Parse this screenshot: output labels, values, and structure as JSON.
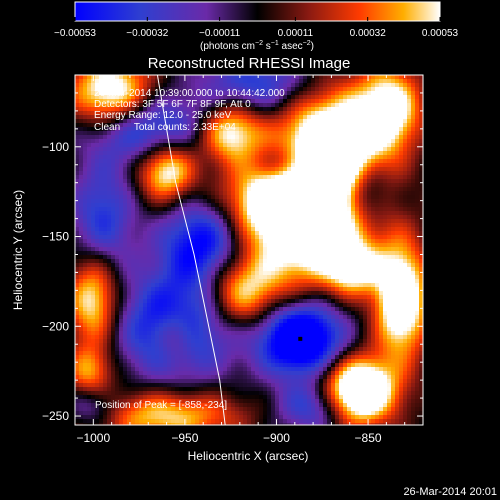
{
  "chart_data": {
    "type": "heatmap",
    "title": "Reconstructed RHESSI Image",
    "xlabel": "Heliocentric X (arcsec)",
    "ylabel": "Heliocentric Y (arcsec)",
    "xlim": [
      -1010,
      -820
    ],
    "ylim": [
      -255,
      -60
    ],
    "x_ticks": [
      -1000,
      -950,
      -900,
      -850
    ],
    "y_ticks": [
      -250,
      -200,
      -150,
      -100
    ],
    "x_tick_labels": [
      "−1000",
      "−950",
      "−900",
      "−850"
    ],
    "y_tick_labels": [
      "−250",
      "−200",
      "−150",
      "−100"
    ],
    "colorbar": {
      "min": -0.00053,
      "max": 0.00053,
      "tick_values": [
        -0.00053,
        -0.00032,
        -0.00011,
        0.00011,
        0.00032,
        0.00053
      ],
      "tick_labels": [
        "−0.00053",
        "−0.00032",
        "−0.00011",
        "0.00011",
        "0.00032",
        "0.00053"
      ],
      "units_label": "(photons cm",
      "units_sup1": "−2",
      "units_mid": " s",
      "units_sup2": "−1",
      "units_end": " asec",
      "units_sup3": "−2",
      "units_close": ")"
    },
    "info_lines": [
      "26-Mar-2014 10:39:00.000 to 10:44:42.000",
      "Detectors: 3F 5F 6F 7F 8F 9F, Att 0",
      "Energy Range: 12.0 - 25.0 keV",
      "Clean     Total counts: 2.33E+04"
    ],
    "peak_label": "Position of Peak = [-858,-234]",
    "peak_position": [
      -858,
      -234
    ],
    "min_marker": [
      -887,
      -207
    ],
    "limb_curve": [
      [
        -965,
        -60
      ],
      [
        -955,
        -120
      ],
      [
        -945,
        -160
      ],
      [
        -937,
        -200
      ],
      [
        -931,
        -230
      ],
      [
        -928,
        -255
      ]
    ],
    "blobs": [
      {
        "x": -870,
        "y": -100,
        "sx": 20,
        "sy": 22,
        "a": 0.0009
      },
      {
        "x": -882,
        "y": -148,
        "sx": 22,
        "sy": 20,
        "a": 0.00075
      },
      {
        "x": -920,
        "y": -180,
        "sx": 16,
        "sy": 15,
        "a": 0.0006
      },
      {
        "x": -903,
        "y": -130,
        "sx": 20,
        "sy": 14,
        "a": 0.00055
      },
      {
        "x": -925,
        "y": -92,
        "sx": 12,
        "sy": 12,
        "a": 0.0006
      },
      {
        "x": -960,
        "y": -113,
        "sx": 11,
        "sy": 12,
        "a": 0.00065
      },
      {
        "x": -990,
        "y": -70,
        "sx": 16,
        "sy": 14,
        "a": 0.0007
      },
      {
        "x": -1000,
        "y": -185,
        "sx": 10,
        "sy": 18,
        "a": 0.0006
      },
      {
        "x": -855,
        "y": -236,
        "sx": 14,
        "sy": 13,
        "a": 0.00095
      },
      {
        "x": -832,
        "y": -185,
        "sx": 10,
        "sy": 22,
        "a": 0.0008
      },
      {
        "x": -960,
        "y": -250,
        "sx": 28,
        "sy": 10,
        "a": 0.0005
      },
      {
        "x": -838,
        "y": -78,
        "sx": 12,
        "sy": 16,
        "a": 0.0006
      },
      {
        "x": -858,
        "y": -168,
        "sx": 10,
        "sy": 10,
        "a": 0.0005
      },
      {
        "x": -1002,
        "y": -225,
        "sx": 9,
        "sy": 10,
        "a": 0.0004
      },
      {
        "x": -955,
        "y": -205,
        "sx": 8,
        "sy": 10,
        "a": 0.00035
      },
      {
        "x": -940,
        "y": -155,
        "sx": 16,
        "sy": 18,
        "a": -0.0006
      },
      {
        "x": -955,
        "y": -200,
        "sx": 22,
        "sy": 20,
        "a": -0.0006
      },
      {
        "x": -887,
        "y": -207,
        "sx": 16,
        "sy": 14,
        "a": -0.00085
      },
      {
        "x": -970,
        "y": -90,
        "sx": 22,
        "sy": 14,
        "a": -0.0005
      },
      {
        "x": -910,
        "y": -65,
        "sx": 22,
        "sy": 12,
        "a": -0.0004
      },
      {
        "x": -880,
        "y": -245,
        "sx": 14,
        "sy": 10,
        "a": -0.0004
      },
      {
        "x": -995,
        "y": -140,
        "sx": 12,
        "sy": 22,
        "a": -0.0004
      },
      {
        "x": -850,
        "y": -125,
        "sx": 8,
        "sy": 12,
        "a": -0.00035
      },
      {
        "x": -895,
        "y": -110,
        "sx": 10,
        "sy": 8,
        "a": -0.0003
      },
      {
        "x": -1000,
        "y": -245,
        "sx": 10,
        "sy": 8,
        "a": -0.0003
      }
    ]
  },
  "footer": {
    "timestamp": "26-Mar-2014 20:01"
  }
}
